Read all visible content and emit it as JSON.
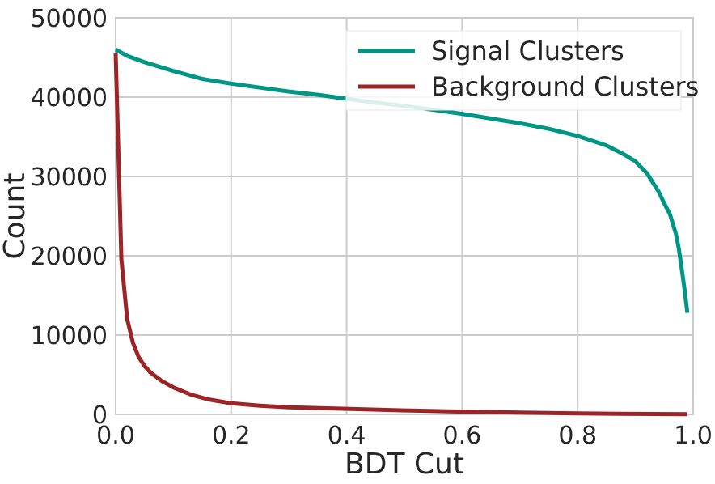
{
  "chart_data": {
    "type": "line",
    "title": "",
    "xlabel": "BDT Cut",
    "ylabel": "Count",
    "xlim": [
      0.0,
      1.0
    ],
    "ylim": [
      0,
      50000
    ],
    "xticks": [
      0.0,
      0.2,
      0.4,
      0.6,
      0.8,
      1.0
    ],
    "xtick_labels": [
      "0.0",
      "0.2",
      "0.4",
      "0.6",
      "0.8",
      "1.0"
    ],
    "yticks": [
      0,
      10000,
      20000,
      30000,
      40000,
      50000
    ],
    "ytick_labels": [
      "0",
      "10000",
      "20000",
      "30000",
      "40000",
      "50000"
    ],
    "grid": true,
    "legend_position": "top-right",
    "series": [
      {
        "name": "Signal Clusters",
        "color": "#009683",
        "x": [
          0.0,
          0.02,
          0.05,
          0.1,
          0.15,
          0.2,
          0.25,
          0.3,
          0.35,
          0.4,
          0.45,
          0.5,
          0.55,
          0.6,
          0.65,
          0.7,
          0.75,
          0.8,
          0.85,
          0.88,
          0.9,
          0.92,
          0.94,
          0.95,
          0.96,
          0.97,
          0.975,
          0.98,
          0.985,
          0.99
        ],
        "y": [
          46000,
          45200,
          44400,
          43300,
          42300,
          41700,
          41200,
          40700,
          40300,
          39800,
          39300,
          38900,
          38400,
          37900,
          37300,
          36700,
          36000,
          35100,
          33900,
          32800,
          31900,
          30400,
          28100,
          26600,
          25200,
          22800,
          21000,
          18500,
          15800,
          12800
        ]
      },
      {
        "name": "Background Clusters",
        "color": "#9b2426",
        "x": [
          0.0,
          0.01,
          0.02,
          0.03,
          0.04,
          0.05,
          0.06,
          0.08,
          0.1,
          0.13,
          0.16,
          0.2,
          0.25,
          0.3,
          0.4,
          0.5,
          0.6,
          0.7,
          0.8,
          0.9,
          0.99
        ],
        "y": [
          45500,
          19500,
          12000,
          9000,
          7200,
          6100,
          5300,
          4200,
          3400,
          2500,
          1900,
          1400,
          1100,
          900,
          700,
          500,
          350,
          220,
          120,
          60,
          20
        ]
      }
    ]
  }
}
